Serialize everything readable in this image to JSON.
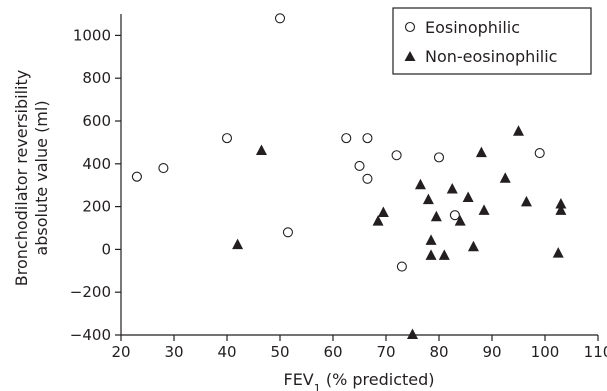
{
  "chart_data": {
    "type": "scatter",
    "xlabel": "FEV",
    "xlabel_subscript": "1",
    "xlabel_suffix": " (% predicted)",
    "ylabel_lines": [
      "Bronchodilator reversibility",
      "absolute value (ml)"
    ],
    "xlim": [
      20,
      110
    ],
    "ylim": [
      -400,
      1100
    ],
    "xticks": [
      20,
      30,
      40,
      50,
      60,
      70,
      80,
      90,
      100,
      110
    ],
    "yticks": [
      -400,
      -200,
      0,
      200,
      400,
      600,
      800,
      1000
    ],
    "legend_position": "top-right",
    "series": [
      {
        "name": "Eosinophilic",
        "marker": "open-circle",
        "points": [
          {
            "x": 23,
            "y": 340
          },
          {
            "x": 28,
            "y": 380
          },
          {
            "x": 40,
            "y": 520
          },
          {
            "x": 50,
            "y": 1080
          },
          {
            "x": 51.5,
            "y": 80
          },
          {
            "x": 62.5,
            "y": 520
          },
          {
            "x": 65,
            "y": 390
          },
          {
            "x": 66.5,
            "y": 520
          },
          {
            "x": 66.5,
            "y": 330
          },
          {
            "x": 72,
            "y": 440
          },
          {
            "x": 73,
            "y": -80
          },
          {
            "x": 80,
            "y": 430
          },
          {
            "x": 83,
            "y": 160
          },
          {
            "x": 99,
            "y": 450
          }
        ]
      },
      {
        "name": "Non-eosinophilic",
        "marker": "filled-triangle",
        "points": [
          {
            "x": 42,
            "y": 20
          },
          {
            "x": 46.5,
            "y": 460
          },
          {
            "x": 68.5,
            "y": 130
          },
          {
            "x": 69.5,
            "y": 170
          },
          {
            "x": 75,
            "y": -400
          },
          {
            "x": 76.5,
            "y": 300
          },
          {
            "x": 78,
            "y": 230
          },
          {
            "x": 78.5,
            "y": 40
          },
          {
            "x": 78.5,
            "y": -30
          },
          {
            "x": 79.5,
            "y": 150
          },
          {
            "x": 81,
            "y": -30
          },
          {
            "x": 82.5,
            "y": 280
          },
          {
            "x": 84,
            "y": 130
          },
          {
            "x": 85.5,
            "y": 240
          },
          {
            "x": 86.5,
            "y": 10
          },
          {
            "x": 88,
            "y": 450
          },
          {
            "x": 88.5,
            "y": 180
          },
          {
            "x": 92.5,
            "y": 330
          },
          {
            "x": 95,
            "y": 550
          },
          {
            "x": 96.5,
            "y": 220
          },
          {
            "x": 102.5,
            "y": -20
          },
          {
            "x": 103,
            "y": 210
          },
          {
            "x": 103,
            "y": 180
          }
        ]
      }
    ]
  }
}
